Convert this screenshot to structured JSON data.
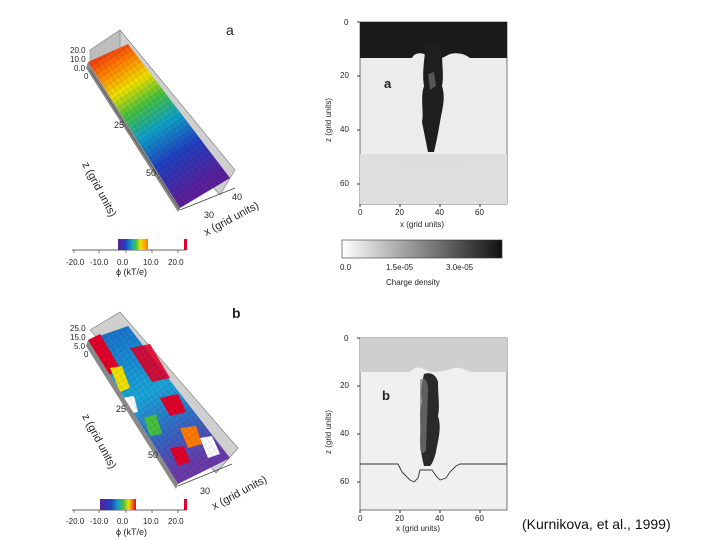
{
  "figure": {
    "panel_a_letter": "a",
    "panel_b_letter": "b",
    "citation": "(Kurnikova, et al., 1999)"
  },
  "surface_a": {
    "letter": "a",
    "z_axis_label": "z (grid units)",
    "x_axis_label": "x (grid units)",
    "height_ticks": [
      "20.0",
      "10.0",
      "0.0",
      "0"
    ],
    "z_ticks": [
      "25",
      "50"
    ],
    "x_ticks": [
      "30",
      "40"
    ]
  },
  "surface_b": {
    "letter": "b",
    "z_axis_label": "z (grid units)",
    "x_axis_label": "x (grid units)",
    "height_ticks": [
      "25.0",
      "15.0",
      "5.0",
      "0"
    ],
    "z_ticks": [
      "25",
      "50"
    ],
    "x_ticks": [
      "30"
    ]
  },
  "colorbar_phi_a": {
    "ticks": [
      "-20.0",
      "-10.0",
      "0.0",
      "10.0",
      "20.0"
    ],
    "label": "ϕ (kT/e)"
  },
  "colorbar_phi_b": {
    "ticks": [
      "-20.0",
      "-10.0",
      "0.0",
      "10.0",
      "20.0"
    ],
    "label": "ϕ (kT/e)"
  },
  "density_map_a": {
    "letter": "a",
    "ylabel": "z (grid units)",
    "xlabel": "x (grid units)",
    "y_ticks": [
      "0",
      "20",
      "40",
      "60"
    ],
    "x_ticks": [
      "0",
      "20",
      "40",
      "60"
    ]
  },
  "density_map_b": {
    "letter": "b",
    "ylabel": "z (grid units)",
    "xlabel": "x (grid units)",
    "y_ticks": [
      "0",
      "20",
      "40",
      "60"
    ],
    "x_ticks": [
      "0",
      "20",
      "40",
      "60"
    ]
  },
  "colorbar_charge": {
    "ticks": [
      "0.0",
      "1.5e-05",
      "3.0e-05"
    ],
    "label": "Charge density"
  }
}
